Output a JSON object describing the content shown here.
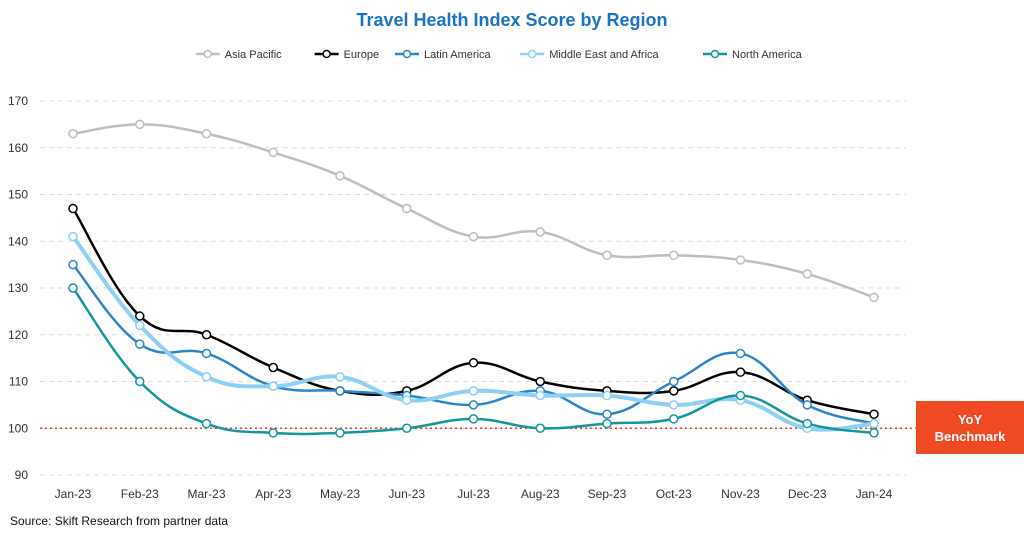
{
  "chart_data": {
    "type": "line",
    "title": "Travel Health Index Score by Region",
    "categories": [
      "Jan-23",
      "Feb-23",
      "Mar-23",
      "Apr-23",
      "May-23",
      "Jun-23",
      "Jul-23",
      "Aug-23",
      "Sep-23",
      "Oct-23",
      "Nov-23",
      "Dec-23",
      "Jan-24"
    ],
    "ylim": [
      90,
      170
    ],
    "yticks": [
      90,
      100,
      110,
      120,
      130,
      140,
      150,
      160,
      170
    ],
    "grid": true,
    "legend": "top",
    "series": [
      {
        "name": "Asia Pacific",
        "color": "#bdbdbd",
        "width": 2.5,
        "values": [
          163,
          165,
          163,
          159,
          154,
          147,
          141,
          142,
          137,
          137,
          136,
          133,
          128
        ]
      },
      {
        "name": "Europe",
        "color": "#000000",
        "width": 2.5,
        "values": [
          147,
          124,
          120,
          113,
          108,
          108,
          114,
          110,
          108,
          108,
          112,
          106,
          103
        ]
      },
      {
        "name": "Latin America",
        "color": "#2b86c9",
        "width": 2.5,
        "values": [
          135,
          118,
          116,
          109,
          108,
          107,
          105,
          108,
          103,
          110,
          116,
          105,
          101
        ]
      },
      {
        "name": "Middle East and Africa",
        "color": "#8ecff5",
        "width": 4,
        "values": [
          141,
          122,
          111,
          109,
          111,
          106,
          108,
          107,
          107,
          105,
          106,
          100,
          101
        ]
      },
      {
        "name": "North America",
        "color": "#14969c",
        "width": 2.5,
        "values": [
          130,
          110,
          101,
          99,
          99,
          100,
          102,
          100,
          101,
          102,
          107,
          101,
          99
        ]
      }
    ],
    "benchmark": {
      "value": 100,
      "color": "#e8392b",
      "label_line1": "YoY",
      "label_line2": "Benchmark"
    }
  },
  "source": "Source: Skift Research from partner data"
}
